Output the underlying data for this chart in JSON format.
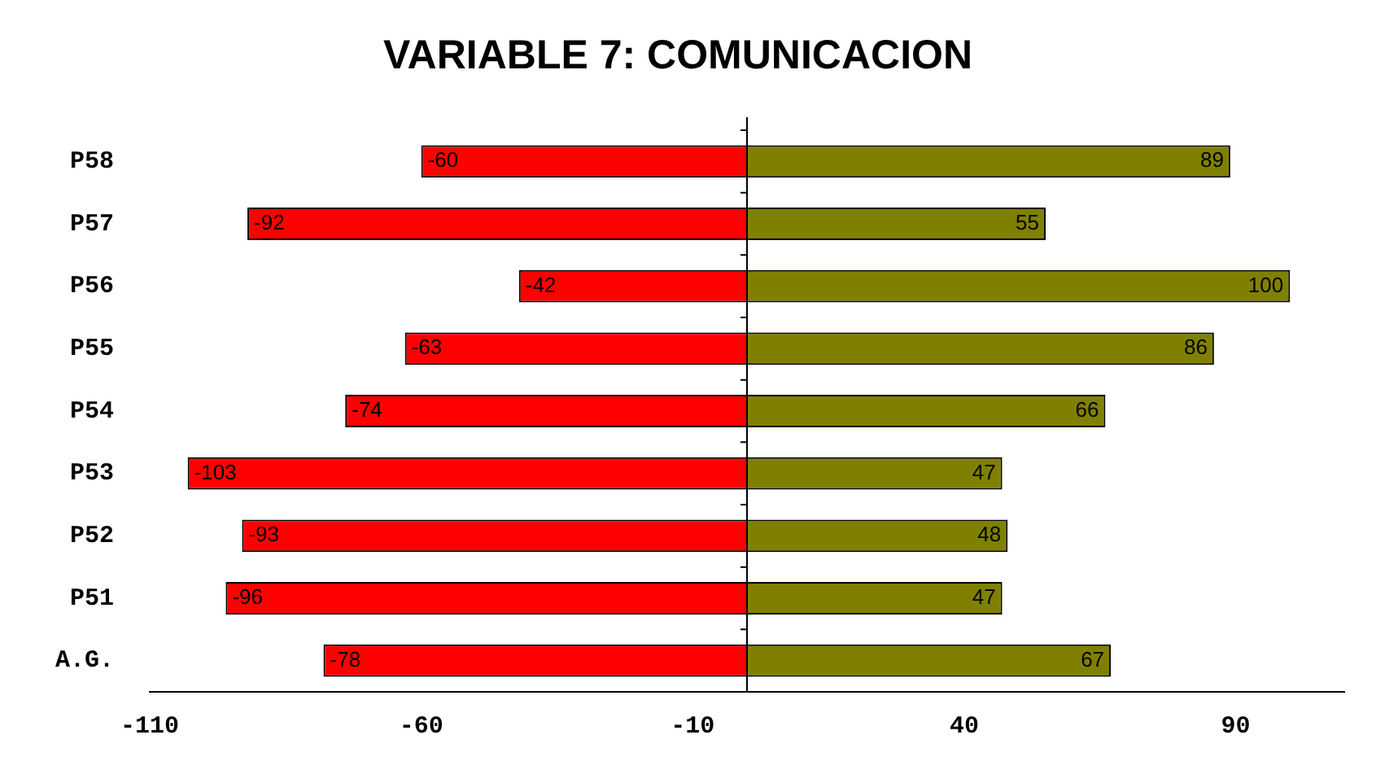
{
  "chart_data": {
    "type": "bar",
    "orientation": "horizontal",
    "stacked": true,
    "title": "VARIABLE 7: COMUNICACION",
    "categories": [
      "P58",
      "P57",
      "P56",
      "P55",
      "P54",
      "P53",
      "P52",
      "P51",
      "A.G."
    ],
    "series": [
      {
        "color": "#ff0000",
        "values": [
          -60,
          -92,
          -42,
          -63,
          -74,
          -103,
          -93,
          -96,
          -78
        ]
      },
      {
        "color": "#808000",
        "values": [
          89,
          55,
          100,
          86,
          66,
          47,
          48,
          47,
          67
        ]
      }
    ],
    "xlim": [
      -110,
      110
    ],
    "xticks": [
      -110,
      -60,
      -10,
      40,
      90
    ],
    "grid": false,
    "legend": false,
    "data_labels": true
  }
}
